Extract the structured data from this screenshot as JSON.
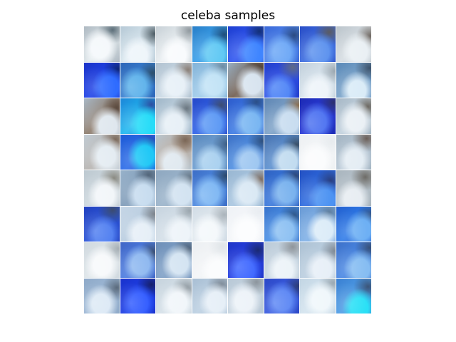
{
  "figure": {
    "title": "celeba samples"
  },
  "samples": {
    "rows": 8,
    "cols": 8,
    "tiles": [
      {
        "bg": "#dfe7ea",
        "face": "#f4f8fb",
        "hair": "#5d6f7a",
        "shade": "#aeb9c2"
      },
      {
        "bg": "#d8e6ee",
        "face": "#eef5fa",
        "hair": "#4e5d66",
        "shade": "#b6c9d6"
      },
      {
        "bg": "#e9eef1",
        "face": "#f9fbfd",
        "hair": "#8f989e",
        "shade": "#c8d1d7"
      },
      {
        "bg": "#3aa0ea",
        "face": "#61c9f4",
        "hair": "#1f4d7a",
        "shade": "#2a7fc8"
      },
      {
        "bg": "#2f56f0",
        "face": "#3f85ff",
        "hair": "#123076",
        "shade": "#1f3fd0"
      },
      {
        "bg": "#4f86ea",
        "face": "#6aa6f6",
        "hair": "#2b4b82",
        "shade": "#3b69d9"
      },
      {
        "bg": "#3d6de0",
        "face": "#5b91ee",
        "hair": "#5a5b62",
        "shade": "#2b4fc7"
      },
      {
        "bg": "#d6dde2",
        "face": "#eaf0f4",
        "hair": "#6f6862",
        "shade": "#bcc5cc"
      },
      {
        "bg": "#1f43e8",
        "face": "#2f6cff",
        "hair": "#0e2576",
        "shade": "#1a33c8"
      },
      {
        "bg": "#3a7fcf",
        "face": "#5ab0ea",
        "hair": "#2d4f6c",
        "shade": "#2d66b8"
      },
      {
        "bg": "#c9d8e4",
        "face": "#e7f0f7",
        "hair": "#8b8078",
        "shade": "#b1c2d0"
      },
      {
        "bg": "#9fcbea",
        "face": "#c2e3f6",
        "hair": "#6e8ca3",
        "shade": "#83b3d8"
      },
      {
        "bg": "#6e5a4c",
        "face": "#d8e4ef",
        "hair": "#4a3b31",
        "shade": "#9ab0c3"
      },
      {
        "bg": "#2f50e6",
        "face": "#4b82f6",
        "hair": "#5e6a86",
        "shade": "#233fcc"
      },
      {
        "bg": "#d9e5ee",
        "face": "#eef4f9",
        "hair": "#9aa6af",
        "shade": "#c3d1dc"
      },
      {
        "bg": "#7aa3c9",
        "face": "#d9ebf7",
        "hair": "#3d536b",
        "shade": "#5a89b8"
      },
      {
        "bg": "#8c7a6a",
        "face": "#dfe7ee",
        "hair": "#5b4a3f",
        "shade": "#a9b8c6"
      },
      {
        "bg": "#1fb8f0",
        "face": "#27dcf8",
        "hair": "#2c4ea2",
        "shade": "#1d86d8"
      },
      {
        "bg": "#c6d6e2",
        "face": "#e6eff6",
        "hair": "#6a7680",
        "shade": "#9fb6c8"
      },
      {
        "bg": "#2f62e8",
        "face": "#5b98f4",
        "hair": "#3d4d72",
        "shade": "#2749c8"
      },
      {
        "bg": "#3d7be4",
        "face": "#79b6f2",
        "hair": "#2b4f86",
        "shade": "#2e5ccc"
      },
      {
        "bg": "#7fa3c8",
        "face": "#c9ddf0",
        "hair": "#8a6e4f",
        "shade": "#5f86b4"
      },
      {
        "bg": "#2a3bd8",
        "face": "#4a70f0",
        "hair": "#2b2f6e",
        "shade": "#1d2bb4"
      },
      {
        "bg": "#c3d2de",
        "face": "#eaf0f5",
        "hair": "#6d6962",
        "shade": "#a7b8c6"
      },
      {
        "bg": "#b6b3b0",
        "face": "#e4ecf2",
        "hair": "#7c6a5c",
        "shade": "#c2ccd4"
      },
      {
        "bg": "#2c6ce8",
        "face": "#20c8f6",
        "hair": "#2540a8",
        "shade": "#1f5bd6"
      },
      {
        "bg": "#b9a89a",
        "face": "#dfe8ef",
        "hair": "#7a6656",
        "shade": "#b9c6d0"
      },
      {
        "bg": "#6e9ed0",
        "face": "#a8d0ef",
        "hair": "#3e5f86",
        "shade": "#5a88bc"
      },
      {
        "bg": "#4f8fe2",
        "face": "#9ec7f1",
        "hair": "#2d4f7e",
        "shade": "#3f72c6"
      },
      {
        "bg": "#5b8fcf",
        "face": "#c2dcf0",
        "hair": "#3a4f66",
        "shade": "#4a74b0"
      },
      {
        "bg": "#f4f6f8",
        "face": "#fbfcfd",
        "hair": "#e7ebee",
        "shade": "#eef1f3"
      },
      {
        "bg": "#b8c8d6",
        "face": "#e3ecf3",
        "hair": "#6b5f58",
        "shade": "#a4b5c3"
      },
      {
        "bg": "#cfd9df",
        "face": "#f2f6f9",
        "hair": "#8a8a82",
        "shade": "#bcc8d0"
      },
      {
        "bg": "#7f9bb8",
        "face": "#c7dcef",
        "hair": "#53667a",
        "shade": "#98b2ca"
      },
      {
        "bg": "#9ab3ca",
        "face": "#d3e3f1",
        "hair": "#5f6f7e",
        "shade": "#8fa8c0"
      },
      {
        "bg": "#4f8be0",
        "face": "#7cb6f3",
        "hair": "#2d4a6e",
        "shade": "#3c6dc6"
      },
      {
        "bg": "#a9c6e0",
        "face": "#d9e8f4",
        "hair": "#7e6c60",
        "shade": "#9ab7d2"
      },
      {
        "bg": "#3a79dc",
        "face": "#79b2ee",
        "hair": "#2d4676",
        "shade": "#2f62c2"
      },
      {
        "bg": "#2e6ce0",
        "face": "#4d93f2",
        "hair": "#2a3f80",
        "shade": "#2451c2"
      },
      {
        "bg": "#b9c4cc",
        "face": "#e6ecf1",
        "hair": "#6d6b66",
        "shade": "#a9b5be"
      },
      {
        "bg": "#2b55d8",
        "face": "#4f7ef0",
        "hair": "#3b4c70",
        "shade": "#2342bf"
      },
      {
        "bg": "#b9cde0",
        "face": "#e6eff7",
        "hair": "#7d848c",
        "shade": "#c6d6e6"
      },
      {
        "bg": "#d4dfe8",
        "face": "#eef4f9",
        "hair": "#9aa5ad",
        "shade": "#c7d4df"
      },
      {
        "bg": "#e0e8ee",
        "face": "#f4f8fb",
        "hair": "#aab3ba",
        "shade": "#d2dde6"
      },
      {
        "bg": "#f5f7fa",
        "face": "#fcfdfe",
        "hair": "#e8ecf1",
        "shade": "#eff2f6"
      },
      {
        "bg": "#4a90e6",
        "face": "#8cc0f2",
        "hair": "#2f5688",
        "shade": "#3a74cc"
      },
      {
        "bg": "#7fb0e6",
        "face": "#dcecf8",
        "hair": "#5f7e9e",
        "shade": "#6c9cd6"
      },
      {
        "bg": "#2f7be8",
        "face": "#6eb0f4",
        "hair": "#334e78",
        "shade": "#2461cf"
      },
      {
        "bg": "#dfe6ea",
        "face": "#f7f9fb",
        "hair": "#a5aeb4",
        "shade": "#d0d9df"
      },
      {
        "bg": "#4e7de0",
        "face": "#8eb8f0",
        "hair": "#3a4e70",
        "shade": "#3f66c6"
      },
      {
        "bg": "#7fa0c6",
        "face": "#d4e4f2",
        "hair": "#4b5f76",
        "shade": "#6e8fb8"
      },
      {
        "bg": "#f3f5f7",
        "face": "#fbfcfd",
        "hair": "#dfe4e8",
        "shade": "#eceff2"
      },
      {
        "bg": "#2640e2",
        "face": "#3a64ff",
        "hair": "#1b2a72",
        "shade": "#2036c8"
      },
      {
        "bg": "#c9d7e3",
        "face": "#ecf3f8",
        "hair": "#8e949a",
        "shade": "#bccbd8"
      },
      {
        "bg": "#bccfe0",
        "face": "#e7eff7",
        "hair": "#7e8893",
        "shade": "#adc2d4"
      },
      {
        "bg": "#4a88e4",
        "face": "#86bdf2",
        "hair": "#37517a",
        "shade": "#3d71c9"
      },
      {
        "bg": "#9fb9d6",
        "face": "#dce9f5",
        "hair": "#5a6a7c",
        "shade": "#8ea9c8"
      },
      {
        "bg": "#1d3fe6",
        "face": "#2f5aff",
        "hair": "#161f6a",
        "shade": "#1a32cc"
      },
      {
        "bg": "#d5e0e8",
        "face": "#f1f6fa",
        "hair": "#8e989f",
        "shade": "#c6d3dd"
      },
      {
        "bg": "#bcd0e2",
        "face": "#e6eff7",
        "hair": "#7b8794",
        "shade": "#a9bfd4"
      },
      {
        "bg": "#c8d6e2",
        "face": "#ecf2f8",
        "hair": "#8b949c",
        "shade": "#b8c8d6"
      },
      {
        "bg": "#3a5ce0",
        "face": "#5b86f4",
        "hair": "#2c3c76",
        "shade": "#2c48c6"
      },
      {
        "bg": "#d4e4ef",
        "face": "#f0f7fb",
        "hair": "#9aa8b2",
        "shade": "#c3d6e4"
      },
      {
        "bg": "#4f9ee6",
        "face": "#2ae0f6",
        "hair": "#3b5478",
        "shade": "#3a7fd2"
      }
    ]
  }
}
